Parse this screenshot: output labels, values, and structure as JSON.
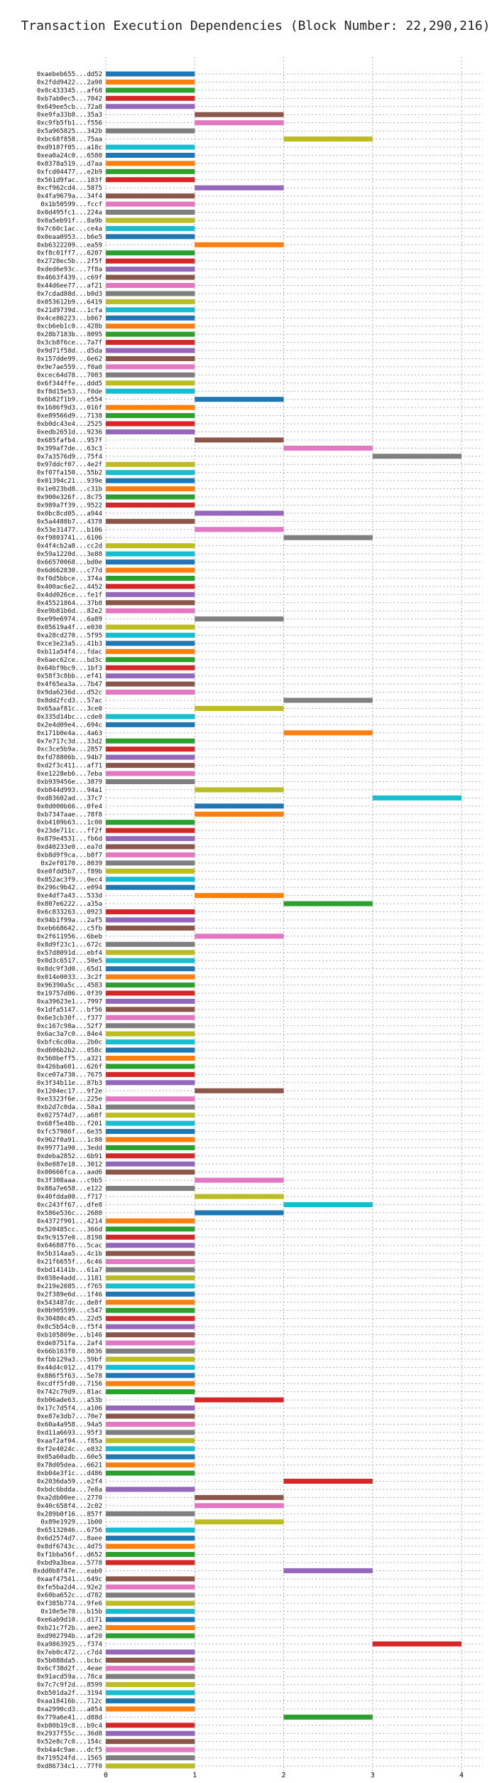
{
  "chart_data": {
    "type": "bar",
    "orientation": "horizontal",
    "title": "Transaction Execution Dependencies (Block Number: 22,290,216)",
    "xlim": [
      0,
      4
    ],
    "xticks": [
      "0",
      "1",
      "2",
      "3",
      "4"
    ],
    "grid": true,
    "palette": [
      "#1f77b4",
      "#ff7f0e",
      "#2ca02c",
      "#d62728",
      "#9467bd",
      "#8c564b",
      "#e377c2",
      "#7f7f7f",
      "#bcbd22",
      "#17becf"
    ],
    "bars": [
      {
        "label": "0xaebeb655...dd52",
        "start": 0,
        "end": 1
      },
      {
        "label": "0x2fdd9422...2a98",
        "start": 0,
        "end": 1
      },
      {
        "label": "0x0c433345...af68",
        "start": 0,
        "end": 1
      },
      {
        "label": "0xb7ab0ec5...7042",
        "start": 0,
        "end": 1
      },
      {
        "label": "0x649ee5cb...72a8",
        "start": 0,
        "end": 1
      },
      {
        "label": "0xe9fa33b8...35a3",
        "start": 1,
        "end": 2
      },
      {
        "label": "0xc9fb5fb1...f556",
        "start": 1,
        "end": 2
      },
      {
        "label": "0x5a965825...342b",
        "start": 0,
        "end": 1
      },
      {
        "label": "0xbc68f858...75aa",
        "start": 2,
        "end": 3
      },
      {
        "label": "0xd9187f05...a18c",
        "start": 0,
        "end": 1
      },
      {
        "label": "0xea0a24c0...6580",
        "start": 0,
        "end": 1
      },
      {
        "label": "0x8378a519...d7aa",
        "start": 0,
        "end": 1
      },
      {
        "label": "0xfcd04477...e2b9",
        "start": 0,
        "end": 1
      },
      {
        "label": "0x561d9fac...183f",
        "start": 0,
        "end": 1
      },
      {
        "label": "0xcf962cd4...5875",
        "start": 1,
        "end": 2
      },
      {
        "label": "0x4fa9679a...34f4",
        "start": 0,
        "end": 1
      },
      {
        "label": "0x1b50599...fccf",
        "start": 0,
        "end": 1
      },
      {
        "label": "0x0d495fc1...224a",
        "start": 0,
        "end": 1
      },
      {
        "label": "0x0a5eb91f...8a9b",
        "start": 0,
        "end": 1
      },
      {
        "label": "0x7c60c1ac...ce4a",
        "start": 0,
        "end": 1
      },
      {
        "label": "0x0eaa0953...b6e5",
        "start": 0,
        "end": 1
      },
      {
        "label": "0xb6322209...ea59",
        "start": 1,
        "end": 2
      },
      {
        "label": "0xf8c01ff7...6207",
        "start": 0,
        "end": 1
      },
      {
        "label": "0x2728ec5b...2f5f",
        "start": 0,
        "end": 1
      },
      {
        "label": "0xded6e93c...7f8a",
        "start": 0,
        "end": 1
      },
      {
        "label": "0x4663f439...c69f",
        "start": 0,
        "end": 1
      },
      {
        "label": "0x44d6ee77...af21",
        "start": 0,
        "end": 1
      },
      {
        "label": "0x7cdad88d...b0d3",
        "start": 0,
        "end": 1
      },
      {
        "label": "0x053612b9...6419",
        "start": 0,
        "end": 1
      },
      {
        "label": "0x21d9739d...1cfa",
        "start": 0,
        "end": 1
      },
      {
        "label": "0x4ce86223...b067",
        "start": 0,
        "end": 1
      },
      {
        "label": "0xcb6eb1c0...428b",
        "start": 0,
        "end": 1
      },
      {
        "label": "0x28b7183b...8095",
        "start": 0,
        "end": 1
      },
      {
        "label": "0x3cb8f6ce...7a7f",
        "start": 0,
        "end": 1
      },
      {
        "label": "0x9d71f58d...d5da",
        "start": 0,
        "end": 1
      },
      {
        "label": "0x157dde99...6e62",
        "start": 0,
        "end": 1
      },
      {
        "label": "0x9e7ae559...f0a0",
        "start": 0,
        "end": 1
      },
      {
        "label": "0xcec64d78...7083",
        "start": 0,
        "end": 1
      },
      {
        "label": "0x6f344ffe...ddd5",
        "start": 0,
        "end": 1
      },
      {
        "label": "0xf8d15e53...f0de",
        "start": 0,
        "end": 1
      },
      {
        "label": "0x6b82f1b9...e554",
        "start": 1,
        "end": 2
      },
      {
        "label": "0x1686f9d3...016f",
        "start": 0,
        "end": 1
      },
      {
        "label": "0xe89566d9...7138",
        "start": 0,
        "end": 1
      },
      {
        "label": "0xb0dc43e4...2525",
        "start": 0,
        "end": 1
      },
      {
        "label": "0xedb2651d...9236",
        "start": 0,
        "end": 1
      },
      {
        "label": "0x685fafb4...957f",
        "start": 1,
        "end": 2
      },
      {
        "label": "0x399af7de...63c3",
        "start": 2,
        "end": 3
      },
      {
        "label": "0x7a3576d9...75f4",
        "start": 3,
        "end": 4
      },
      {
        "label": "0x97ddcf07...4e2f",
        "start": 0,
        "end": 1
      },
      {
        "label": "0xf07fa150...55b2",
        "start": 0,
        "end": 1
      },
      {
        "label": "0x01394c21...939e",
        "start": 0,
        "end": 1
      },
      {
        "label": "0x1e023bd8...c31b",
        "start": 0,
        "end": 1
      },
      {
        "label": "0x900e326f...8c75",
        "start": 0,
        "end": 1
      },
      {
        "label": "0x989a7f39...9522",
        "start": 0,
        "end": 1
      },
      {
        "label": "0x0bc8cd05...a944",
        "start": 1,
        "end": 2
      },
      {
        "label": "0x5a4488b7...4378",
        "start": 0,
        "end": 1
      },
      {
        "label": "0x53e31477...b106",
        "start": 1,
        "end": 2
      },
      {
        "label": "0xf9803741...6106",
        "start": 2,
        "end": 3
      },
      {
        "label": "0x4f4cb2a8...cc2d",
        "start": 0,
        "end": 1
      },
      {
        "label": "0x59a1220d...3e88",
        "start": 0,
        "end": 1
      },
      {
        "label": "0x66570068...bd0e",
        "start": 0,
        "end": 1
      },
      {
        "label": "0x6d662830...c77d",
        "start": 0,
        "end": 1
      },
      {
        "label": "0xf0d5bbce...374a",
        "start": 0,
        "end": 1
      },
      {
        "label": "0x400ac6e2...4452",
        "start": 0,
        "end": 1
      },
      {
        "label": "0x4dd026ce...fe1f",
        "start": 0,
        "end": 1
      },
      {
        "label": "0x45521864...37b8",
        "start": 0,
        "end": 1
      },
      {
        "label": "0xe9b81b6d...82e2",
        "start": 0,
        "end": 1
      },
      {
        "label": "0xe99e6974...6a89",
        "start": 1,
        "end": 2
      },
      {
        "label": "0x05619a4f...e030",
        "start": 0,
        "end": 1
      },
      {
        "label": "0xa28cd270...5f95",
        "start": 0,
        "end": 1
      },
      {
        "label": "0xce3e23a5...41b3",
        "start": 0,
        "end": 1
      },
      {
        "label": "0xb11a54f4...fdac",
        "start": 0,
        "end": 1
      },
      {
        "label": "0x6aec62ce...bd3c",
        "start": 0,
        "end": 1
      },
      {
        "label": "0x64bf9bc9...1bf3",
        "start": 0,
        "end": 1
      },
      {
        "label": "0x58f3c8bb...ef41",
        "start": 0,
        "end": 1
      },
      {
        "label": "0x4f65ea3a...7b47",
        "start": 0,
        "end": 1
      },
      {
        "label": "0x9da6236d...d52c",
        "start": 0,
        "end": 1
      },
      {
        "label": "0x8dd2fcd3...57ac",
        "start": 2,
        "end": 3
      },
      {
        "label": "0x65aaf81c...3ce0",
        "start": 1,
        "end": 2
      },
      {
        "label": "0x335d14bc...cde0",
        "start": 0,
        "end": 1
      },
      {
        "label": "0x2e4d09e4...694c",
        "start": 0,
        "end": 1
      },
      {
        "label": "0x171b0e4a...4a63",
        "start": 2,
        "end": 3
      },
      {
        "label": "0x7e717c3d...33d2",
        "start": 0,
        "end": 1
      },
      {
        "label": "0xc3ce5b9a...2857",
        "start": 0,
        "end": 1
      },
      {
        "label": "0xfd78806b...94b7",
        "start": 0,
        "end": 1
      },
      {
        "label": "0xd2f3c411...af71",
        "start": 0,
        "end": 1
      },
      {
        "label": "0xe1228eb6...7eba",
        "start": 0,
        "end": 1
      },
      {
        "label": "0xb939456e...3879",
        "start": 0,
        "end": 1
      },
      {
        "label": "0xb844d993...94a1",
        "start": 1,
        "end": 2
      },
      {
        "label": "0xd83602ad...37c7",
        "start": 3,
        "end": 4
      },
      {
        "label": "0x0d000b66...0fe4",
        "start": 1,
        "end": 2
      },
      {
        "label": "0xb7347aae...78f8",
        "start": 1,
        "end": 2
      },
      {
        "label": "0xb4109b63...1c00",
        "start": 0,
        "end": 1
      },
      {
        "label": "0x23de711c...ff2f",
        "start": 0,
        "end": 1
      },
      {
        "label": "0x879e4531...fb6d",
        "start": 0,
        "end": 1
      },
      {
        "label": "0xd40233e0...ea7d",
        "start": 0,
        "end": 1
      },
      {
        "label": "0xb8d9f9ca...b8f7",
        "start": 0,
        "end": 1
      },
      {
        "label": "0x2ef0170...8039",
        "start": 0,
        "end": 1
      },
      {
        "label": "0xe0fdd5b7...f89b",
        "start": 0,
        "end": 1
      },
      {
        "label": "0x852ac3f9...0ec4",
        "start": 0,
        "end": 1
      },
      {
        "label": "0x296c9b42...e094",
        "start": 0,
        "end": 1
      },
      {
        "label": "0xe4df7a43...533d",
        "start": 1,
        "end": 2
      },
      {
        "label": "0x807e6222...a35a",
        "start": 2,
        "end": 3
      },
      {
        "label": "0x6c833263...0923",
        "start": 0,
        "end": 1
      },
      {
        "label": "0x94b1f99a...2af5",
        "start": 0,
        "end": 1
      },
      {
        "label": "0xeb668642...c5fb",
        "start": 0,
        "end": 1
      },
      {
        "label": "0x2f611956...6beb",
        "start": 1,
        "end": 2
      },
      {
        "label": "0x8d9f23c1...672c",
        "start": 0,
        "end": 1
      },
      {
        "label": "0x57d8091d...ebf4",
        "start": 0,
        "end": 1
      },
      {
        "label": "0x0d3c6517...50e5",
        "start": 0,
        "end": 1
      },
      {
        "label": "0x8dc9f3d0...65d1",
        "start": 0,
        "end": 1
      },
      {
        "label": "0x014e0033...3c2f",
        "start": 0,
        "end": 1
      },
      {
        "label": "0x96390a5c...4583",
        "start": 0,
        "end": 1
      },
      {
        "label": "0x19757d06...0f39",
        "start": 0,
        "end": 1
      },
      {
        "label": "0xa39623e1...7997",
        "start": 0,
        "end": 1
      },
      {
        "label": "0x1dfa5147...bf56",
        "start": 0,
        "end": 1
      },
      {
        "label": "0x6e3cb30f...f377",
        "start": 0,
        "end": 1
      },
      {
        "label": "0xc167c98a...52f7",
        "start": 0,
        "end": 1
      },
      {
        "label": "0x6ac3a7c0...84e4",
        "start": 0,
        "end": 1
      },
      {
        "label": "0xbfc6cd0a...2b0c",
        "start": 0,
        "end": 1
      },
      {
        "label": "0xd606b2b2...058c",
        "start": 0,
        "end": 1
      },
      {
        "label": "0x560beff5...a321",
        "start": 0,
        "end": 1
      },
      {
        "label": "0x426ba601...626f",
        "start": 0,
        "end": 1
      },
      {
        "label": "0xce07a730...7675",
        "start": 0,
        "end": 1
      },
      {
        "label": "0x3f34b11e...87b3",
        "start": 0,
        "end": 1
      },
      {
        "label": "0x1204ec17...9f2e",
        "start": 1,
        "end": 2
      },
      {
        "label": "0xe3323f6e...225e",
        "start": 0,
        "end": 1
      },
      {
        "label": "0xb2d7c0da...58a1",
        "start": 0,
        "end": 1
      },
      {
        "label": "0x027574d7...a68f",
        "start": 0,
        "end": 1
      },
      {
        "label": "0x68f5e48b...f201",
        "start": 0,
        "end": 1
      },
      {
        "label": "0xfc57986f...6e35",
        "start": 0,
        "end": 1
      },
      {
        "label": "0x962f0a91...1c80",
        "start": 0,
        "end": 1
      },
      {
        "label": "0x99771a90...3edd",
        "start": 0,
        "end": 1
      },
      {
        "label": "0xdeba2852...6b91",
        "start": 0,
        "end": 1
      },
      {
        "label": "0x8e887e18...3012",
        "start": 0,
        "end": 1
      },
      {
        "label": "0x00666fca...aad6",
        "start": 0,
        "end": 1
      },
      {
        "label": "0x3f308aaa...c9b5",
        "start": 1,
        "end": 2
      },
      {
        "label": "0x88a7e658...e122",
        "start": 0,
        "end": 1
      },
      {
        "label": "0x40fdda00...f717",
        "start": 1,
        "end": 2
      },
      {
        "label": "0xc243ff67...dfe8",
        "start": 2,
        "end": 3
      },
      {
        "label": "0x586e536c...2680",
        "start": 1,
        "end": 2
      },
      {
        "label": "0x4372f901...4214",
        "start": 0,
        "end": 1
      },
      {
        "label": "0x520485cc...366d",
        "start": 0,
        "end": 1
      },
      {
        "label": "0x9c9157e0...8198",
        "start": 0,
        "end": 1
      },
      {
        "label": "0x646887f6...5cac",
        "start": 0,
        "end": 1
      },
      {
        "label": "0x5b314aa5...4c1b",
        "start": 0,
        "end": 1
      },
      {
        "label": "0x21f6655f...6c46",
        "start": 0,
        "end": 1
      },
      {
        "label": "0xbd14141b...61a7",
        "start": 0,
        "end": 1
      },
      {
        "label": "0x038e4add...1181",
        "start": 0,
        "end": 1
      },
      {
        "label": "0x219e2085...f765",
        "start": 0,
        "end": 1
      },
      {
        "label": "0x2f389e6d...1f46",
        "start": 0,
        "end": 1
      },
      {
        "label": "0x543487dc...de8f",
        "start": 0,
        "end": 1
      },
      {
        "label": "0x0b905599...c547",
        "start": 0,
        "end": 1
      },
      {
        "label": "0x30480c45...22d5",
        "start": 0,
        "end": 1
      },
      {
        "label": "0x8c5b54c0...f5f4",
        "start": 0,
        "end": 1
      },
      {
        "label": "0xb105809e...b146",
        "start": 0,
        "end": 1
      },
      {
        "label": "0xde8751fa...2af4",
        "start": 0,
        "end": 1
      },
      {
        "label": "0x66b163f0...8036",
        "start": 0,
        "end": 1
      },
      {
        "label": "0xfbb129a3...59bf",
        "start": 0,
        "end": 1
      },
      {
        "label": "0x44d4c012...4179",
        "start": 0,
        "end": 1
      },
      {
        "label": "0x886f5f63...5e78",
        "start": 0,
        "end": 1
      },
      {
        "label": "0xcdff5fd0...7156",
        "start": 0,
        "end": 1
      },
      {
        "label": "0x742c79d9...81ac",
        "start": 0,
        "end": 1
      },
      {
        "label": "0xb06ade63...a53b",
        "start": 1,
        "end": 2
      },
      {
        "label": "0x17c7d5f4...a106",
        "start": 0,
        "end": 1
      },
      {
        "label": "0xe87e3db7...70e7",
        "start": 0,
        "end": 1
      },
      {
        "label": "0x60a4a958...94a5",
        "start": 0,
        "end": 1
      },
      {
        "label": "0xd11a6693...95f3",
        "start": 0,
        "end": 1
      },
      {
        "label": "0xaaf2af04...f85a",
        "start": 0,
        "end": 1
      },
      {
        "label": "0xf2e4024c...e832",
        "start": 0,
        "end": 1
      },
      {
        "label": "0x05a60adb...60e5",
        "start": 0,
        "end": 1
      },
      {
        "label": "0x78d05dea...6621",
        "start": 0,
        "end": 1
      },
      {
        "label": "0xb04e3f1c...d486",
        "start": 0,
        "end": 1
      },
      {
        "label": "0x2036da59...e2f4",
        "start": 2,
        "end": 3
      },
      {
        "label": "0xbdc6bdda...7e8a",
        "start": 0,
        "end": 1
      },
      {
        "label": "0xa2db00ee...2770",
        "start": 1,
        "end": 2
      },
      {
        "label": "0x40c658f4...2c02",
        "start": 1,
        "end": 2
      },
      {
        "label": "0x289b0f16...857f",
        "start": 0,
        "end": 1
      },
      {
        "label": "0x89e1929...1b00",
        "start": 1,
        "end": 2
      },
      {
        "label": "0x65132046...6756",
        "start": 0,
        "end": 1
      },
      {
        "label": "0x6d2574d7...8aee",
        "start": 0,
        "end": 1
      },
      {
        "label": "0x8df6743c...4d75",
        "start": 0,
        "end": 1
      },
      {
        "label": "0xf1bba56f...d652",
        "start": 0,
        "end": 1
      },
      {
        "label": "0xbd9a3bea...5778",
        "start": 0,
        "end": 1
      },
      {
        "label": "0xdd0b8f47e...eab0",
        "start": 2,
        "end": 3
      },
      {
        "label": "0xaaf47541...649c",
        "start": 0,
        "end": 1
      },
      {
        "label": "0xfe5ba2d4...92e2",
        "start": 0,
        "end": 1
      },
      {
        "label": "0x60ba652c...d782",
        "start": 0,
        "end": 1
      },
      {
        "label": "0xf385b774...9fe6",
        "start": 0,
        "end": 1
      },
      {
        "label": "0x10e5e70...b15b",
        "start": 0,
        "end": 1
      },
      {
        "label": "0xe6ab9d10...d171",
        "start": 0,
        "end": 1
      },
      {
        "label": "0xb21c7f2b...aee2",
        "start": 0,
        "end": 1
      },
      {
        "label": "0xd902794b...af20",
        "start": 0,
        "end": 1
      },
      {
        "label": "0xa9863925...f374",
        "start": 3,
        "end": 4
      },
      {
        "label": "0x7eb0c472...c7d4",
        "start": 0,
        "end": 1
      },
      {
        "label": "0x5b088da5...bcbc",
        "start": 0,
        "end": 1
      },
      {
        "label": "0x6cf38d2f...4eae",
        "start": 0,
        "end": 1
      },
      {
        "label": "0x91acd59a...78ca",
        "start": 0,
        "end": 1
      },
      {
        "label": "0x7c7c9f2d...8599",
        "start": 0,
        "end": 1
      },
      {
        "label": "0xb501da2f...3194",
        "start": 0,
        "end": 1
      },
      {
        "label": "0xaa18416b...712c",
        "start": 0,
        "end": 1
      },
      {
        "label": "0xa2990cd3...a054",
        "start": 0,
        "end": 1
      },
      {
        "label": "0x779a6e41...d88d",
        "start": 2,
        "end": 3
      },
      {
        "label": "0xb80b19c8...b9c4",
        "start": 0,
        "end": 1
      },
      {
        "label": "0x2937f55c...36d8",
        "start": 0,
        "end": 1
      },
      {
        "label": "0x52e8c7c0...154c",
        "start": 0,
        "end": 1
      },
      {
        "label": "0xb4a4c9ae...dcf5",
        "start": 0,
        "end": 1
      },
      {
        "label": "0x719524fd...1565",
        "start": 0,
        "end": 1
      },
      {
        "label": "0xd86734c1...77f0",
        "start": 0,
        "end": 1
      }
    ]
  }
}
